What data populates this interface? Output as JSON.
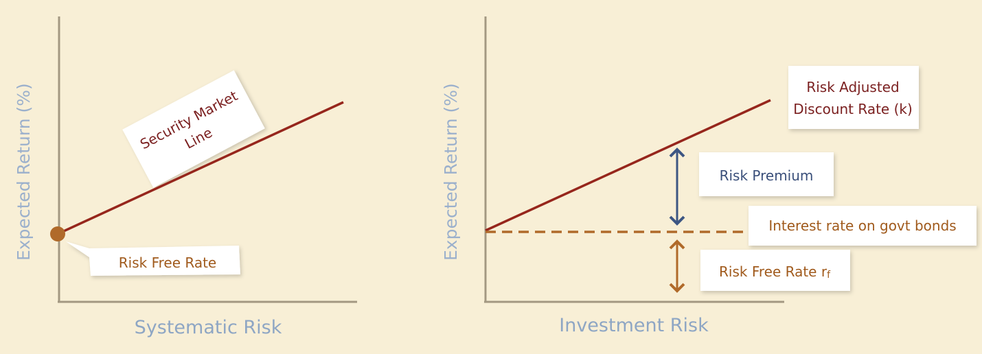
{
  "left_chart": {
    "y_axis_label": "Expected Return (%)",
    "x_axis_label": "Systematic Risk",
    "line_label_line1": "Security Market",
    "line_label_line2": "Line",
    "point_label": "Risk Free Rate"
  },
  "right_chart": {
    "y_axis_label": "Expected Return (%)",
    "x_axis_label": "Investment Risk",
    "line_label_line1": "Risk Adjusted",
    "line_label_line2": "Discount Rate (k)",
    "premium_label": "Risk Premium",
    "bond_label": "Interest rate on govt bonds",
    "risk_free_label": "Risk Free Rate r",
    "risk_free_subscript": "f"
  },
  "colors": {
    "background": "#f8efd6",
    "axis": "#a39882",
    "line": "#96261c",
    "risk_free": "#b06a2a",
    "premium": "#3d5683"
  }
}
